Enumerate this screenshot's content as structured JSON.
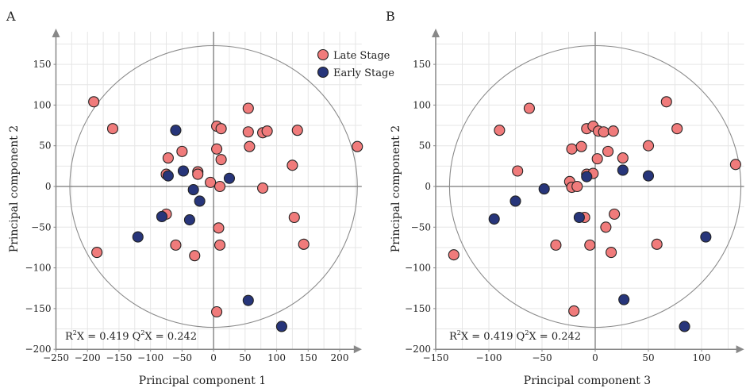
{
  "colors": {
    "late": "#f07b7b",
    "early": "#27357a",
    "outline": "#222222",
    "grid": "#e6e6e6",
    "axis": "#888888",
    "circle": "#8a8a8a"
  },
  "legend": {
    "items": [
      {
        "label": "Late Stage",
        "color": "#f07b7b"
      },
      {
        "label": "Early Stage",
        "color": "#27357a"
      }
    ],
    "placement": "top-right of panel A"
  },
  "chart_data": [
    {
      "type": "scatter",
      "panel": "A",
      "xlabel": "Principal component 1",
      "ylabel": "Principal component 2",
      "xlim": [
        -250,
        235
      ],
      "ylim": [
        -200,
        190
      ],
      "xticks": [
        -250,
        -200,
        -150,
        -100,
        -50,
        0,
        50,
        100,
        150,
        200
      ],
      "yticks": [
        -200,
        -150,
        -100,
        -50,
        0,
        50,
        100,
        150
      ],
      "grid": true,
      "ellipse": {
        "rx": 228,
        "ry": 173
      },
      "stat": {
        "r2_prefix": "R",
        "r2_sup": "2",
        "r2_text": "X = 0.419 ",
        "q2_prefix": "Q",
        "q2_sup": "2",
        "q2_text": "X = 0.242"
      },
      "series": [
        {
          "name": "Late Stage",
          "points": [
            [
              -190,
              104
            ],
            [
              -160,
              71
            ],
            [
              -185,
              -81
            ],
            [
              -75,
              -34
            ],
            [
              -75,
              15
            ],
            [
              -72,
              35
            ],
            [
              -50,
              43
            ],
            [
              -60,
              -72
            ],
            [
              -30,
              -85
            ],
            [
              -25,
              18
            ],
            [
              -25,
              15
            ],
            [
              -5,
              5
            ],
            [
              5,
              74
            ],
            [
              5,
              46
            ],
            [
              12,
              71
            ],
            [
              12,
              33
            ],
            [
              10,
              0
            ],
            [
              8,
              -51
            ],
            [
              10,
              -72
            ],
            [
              5,
              -154
            ],
            [
              55,
              96
            ],
            [
              55,
              67
            ],
            [
              57,
              49
            ],
            [
              78,
              -2
            ],
            [
              78,
              66
            ],
            [
              85,
              68
            ],
            [
              125,
              26
            ],
            [
              133,
              69
            ],
            [
              128,
              -38
            ],
            [
              143,
              -71
            ],
            [
              228,
              49
            ]
          ]
        },
        {
          "name": "Early Stage",
          "points": [
            [
              -60,
              69
            ],
            [
              -72,
              13
            ],
            [
              -48,
              19
            ],
            [
              -32,
              -4
            ],
            [
              -22,
              -18
            ],
            [
              -38,
              -41
            ],
            [
              -82,
              -37
            ],
            [
              -120,
              -62
            ],
            [
              25,
              10
            ],
            [
              55,
              -140
            ],
            [
              108,
              -172
            ]
          ]
        }
      ]
    },
    {
      "type": "scatter",
      "panel": "B",
      "xlabel": "Principal component 3",
      "ylabel": "Principal component 2",
      "xlim": [
        -150,
        140
      ],
      "ylim": [
        -200,
        190
      ],
      "xticks": [
        -150,
        -100,
        -50,
        0,
        50,
        100
      ],
      "yticks": [
        -200,
        -150,
        -100,
        -50,
        0,
        50,
        100,
        150
      ],
      "grid": true,
      "ellipse": {
        "rx": 137,
        "ry": 173
      },
      "stat": {
        "r2_prefix": "R",
        "r2_sup": "2",
        "r2_text": "X = 0.419 ",
        "q2_prefix": "Q",
        "q2_sup": "2",
        "q2_text": "X = 0.242"
      },
      "series": [
        {
          "name": "Late Stage",
          "points": [
            [
              -133,
              -84
            ],
            [
              -90,
              69
            ],
            [
              -73,
              19
            ],
            [
              -62,
              96
            ],
            [
              -37,
              -72
            ],
            [
              -22,
              46
            ],
            [
              -24,
              6
            ],
            [
              -22,
              -1
            ],
            [
              -13,
              49
            ],
            [
              -17,
              0
            ],
            [
              -10,
              -38
            ],
            [
              -8,
              71
            ],
            [
              -8,
              15
            ],
            [
              -5,
              -72
            ],
            [
              -2,
              74
            ],
            [
              -2,
              16
            ],
            [
              2,
              34
            ],
            [
              3,
              68
            ],
            [
              8,
              67
            ],
            [
              10,
              -50
            ],
            [
              12,
              43
            ],
            [
              15,
              -81
            ],
            [
              17,
              68
            ],
            [
              18,
              -34
            ],
            [
              26,
              35
            ],
            [
              50,
              50
            ],
            [
              58,
              -71
            ],
            [
              67,
              104
            ],
            [
              77,
              71
            ],
            [
              132,
              27
            ],
            [
              -20,
              -153
            ]
          ]
        },
        {
          "name": "Early Stage",
          "points": [
            [
              -95,
              -40
            ],
            [
              -75,
              -18
            ],
            [
              -48,
              -3
            ],
            [
              -15,
              -38
            ],
            [
              -8,
              12
            ],
            [
              26,
              20
            ],
            [
              27,
              -139
            ],
            [
              50,
              13
            ],
            [
              84,
              -172
            ],
            [
              104,
              -62
            ]
          ]
        }
      ]
    }
  ],
  "panels": [
    {
      "letter": "A",
      "xlabel": "Principal component 1",
      "ylabel": "Principal component 2",
      "xticks": [
        "−250",
        "−200",
        "−150",
        "−100",
        "−50",
        "0",
        "50",
        "100",
        "150",
        "200"
      ],
      "yticks": [
        "−200",
        "−150",
        "−100",
        "−50",
        "0",
        "50",
        "100",
        "150"
      ]
    },
    {
      "letter": "B",
      "xlabel": "Principal component 3",
      "ylabel": "Principal component 2",
      "xticks": [
        "−150",
        "−100",
        "−50",
        "0",
        "50",
        "100"
      ],
      "yticks": [
        "−200",
        "−150",
        "−100",
        "−50",
        "0",
        "50",
        "100",
        "150"
      ]
    }
  ]
}
